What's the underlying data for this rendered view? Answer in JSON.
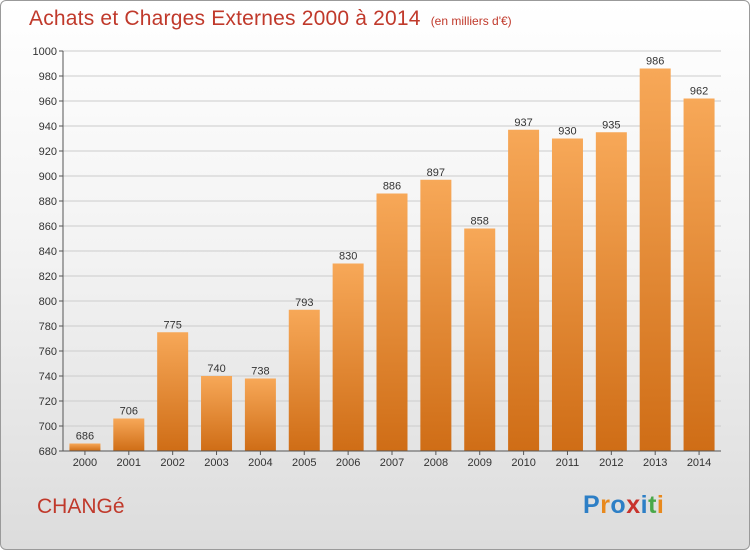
{
  "title": "Achats et Charges Externes 2000 à 2014",
  "unit_note": "(en milliers d'€)",
  "commune": "CHANGé",
  "brand": {
    "letters": [
      "P",
      "r",
      "o",
      "x",
      "i",
      "t",
      "i"
    ],
    "colors": [
      "#2d7fc6",
      "#e8891d",
      "#2d7fc6",
      "#c8332c",
      "#2d7fc6",
      "#4aa84a",
      "#e8891d"
    ]
  },
  "colors": {
    "title": "#c0392b",
    "bar_light": "#f7a858",
    "bar_dark": "#cf6d16",
    "gridline": "#cccccc"
  },
  "chart_data": {
    "type": "bar",
    "title": "Achats et Charges Externes 2000 à 2014",
    "unit": "(en milliers d'€)",
    "categories": [
      "2000",
      "2001",
      "2002",
      "2003",
      "2004",
      "2005",
      "2006",
      "2007",
      "2008",
      "2009",
      "2010",
      "2011",
      "2012",
      "2013",
      "2014"
    ],
    "values": [
      686,
      706,
      775,
      740,
      738,
      793,
      830,
      886,
      897,
      858,
      937,
      930,
      935,
      986,
      962
    ],
    "ylim": [
      680,
      1000
    ],
    "yticks": [
      680,
      700,
      720,
      740,
      760,
      780,
      800,
      820,
      840,
      860,
      880,
      900,
      920,
      940,
      960,
      980,
      1000
    ],
    "grid": true,
    "data_labels": true
  }
}
